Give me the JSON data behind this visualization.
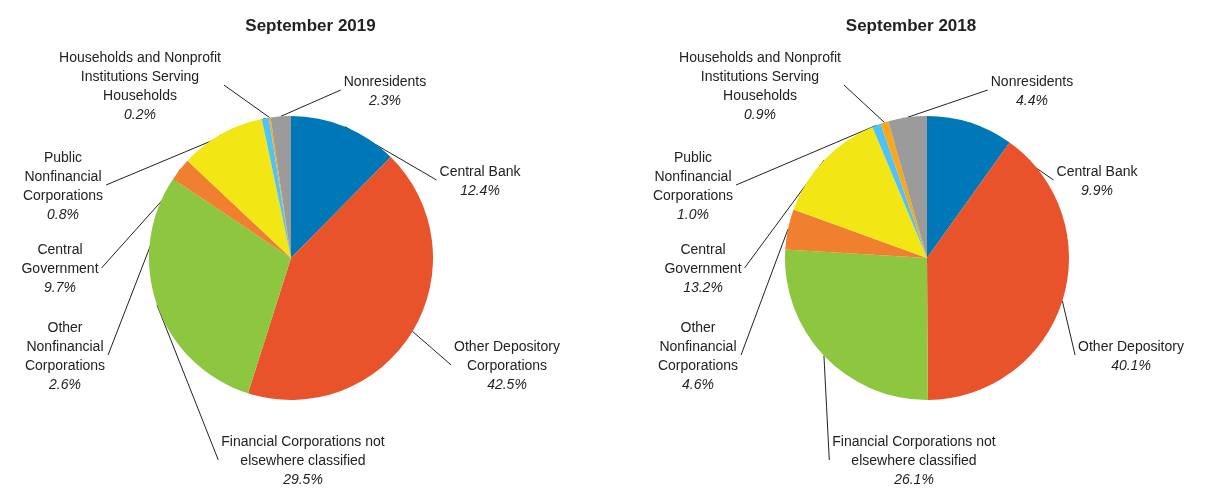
{
  "chart_data": [
    {
      "type": "pie",
      "title": "September 2019",
      "categories": [
        "Central Bank",
        "Other Depository Corporations",
        "Financial Corporations not elsewhere classified",
        "Other Nonfinancial Corporations",
        "Central Government",
        "Public Nonfinancial Corporations",
        "Households and Nonprofit Institutions Serving Households",
        "Nonresidents"
      ],
      "values": [
        12.4,
        42.5,
        29.5,
        2.6,
        9.7,
        0.8,
        0.2,
        2.3
      ],
      "value_labels": [
        "12.4%",
        "42.5%",
        "29.5%",
        "2.6%",
        "9.7%",
        "0.8%",
        "0.2%",
        "2.3%"
      ],
      "colors": [
        "#0077b6",
        "#e9532b",
        "#8dc63f",
        "#f07f2f",
        "#f2e614",
        "#4fc3f7",
        "#f7a81b",
        "#9b9b9b"
      ]
    },
    {
      "type": "pie",
      "title": "September 2018",
      "categories": [
        "Central Bank",
        "Other Depository",
        "Financial Corporations not elsewhere classified",
        "Other Nonfinancial Corporations",
        "Central Government",
        "Public Nonfinancial Corporations",
        "Households and Nonprofit Institutions Serving Households",
        "Nonresidents"
      ],
      "values": [
        9.9,
        40.1,
        26.1,
        4.6,
        13.2,
        1.0,
        0.9,
        4.4
      ],
      "value_labels": [
        "9.9%",
        "40.1%",
        "26.1%",
        "4.6%",
        "13.2%",
        "1.0%",
        "0.9%",
        "4.4%"
      ],
      "colors": [
        "#0077b6",
        "#e9532b",
        "#8dc63f",
        "#f07f2f",
        "#f2e614",
        "#4fc3f7",
        "#f7a81b",
        "#9b9b9b"
      ]
    }
  ]
}
